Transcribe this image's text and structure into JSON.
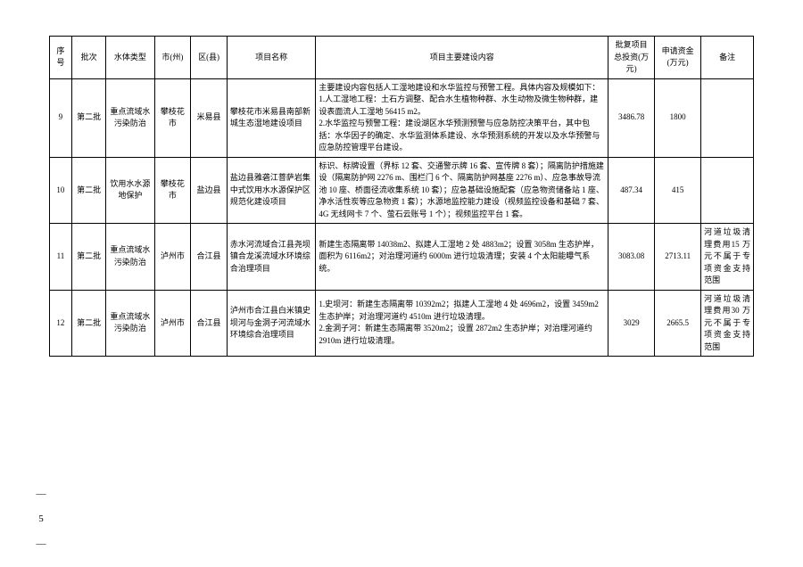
{
  "headers": {
    "seq": "序号",
    "batch": "批次",
    "waterType": "水体类型",
    "city": "市(州)",
    "county": "区(县)",
    "projectName": "项目名称",
    "content": "项目主要建设内容",
    "investment": "批复项目总投资(万元)",
    "fund": "申请资金(万元)",
    "remark": "备注"
  },
  "rows": [
    {
      "seq": "9",
      "batch": "第二批",
      "waterType": "重点流域水污染防治",
      "city": "攀枝花市",
      "county": "米易县",
      "projectName": "攀枝花市米易县南部新城生态湿地建设项目",
      "content": "主要建设内容包括人工湿地建设和水华监控与预警工程。具体内容及规模如下：\n1.人工湿地工程：土石方调整、配合水生植物种群、水生动物及微生物种群，建设表面流人工湿地 56415 m2。\n2.水华监控与预警工程：建设湖区水华预测预警与应急防控决策平台，其中包括：水华因子的确定、水华监测体系建设、水华预测系统的开发以及水华预警与应急防控管理平台建设。",
      "investment": "3486.78",
      "fund": "1800",
      "remark": ""
    },
    {
      "seq": "10",
      "batch": "第二批",
      "waterType": "饮用水水源地保护",
      "city": "攀枝花市",
      "county": "盐边县",
      "projectName": "盐边县雅砻江菩萨岩集中式饮用水水源保护区规范化建设项目",
      "content": "标识、标牌设置（界标 12 套、交通警示牌 16 套、宣传牌 8 套）；隔离防护措施建设（隔离防护网 2276 m、围栏门 6 个、隔离防护网基座 2276 m）、应急事故导流池 10 座、桥面径流收集系统 10 套）；应急基础设施配套（应急物资储备站 1 座、净水活性炭等应急物资 1 套）；水源地监控能力建设（视频监控设备和基础 7 套、4G 无线网卡 7 个、萤石云账号 1 个）；视频监控平台 1 套。",
      "investment": "487.34",
      "fund": "415",
      "remark": ""
    },
    {
      "seq": "11",
      "batch": "第二批",
      "waterType": "重点流域水污染防治",
      "city": "泸州市",
      "county": "合江县",
      "projectName": "赤水河流域合江县尧坝镇合龙溪流域水环境综合治理项目",
      "content": "新建生态隔离带 14038m2、拟建人工湿地 2 处 4883m2；设置 3058m 生态护岸，面积为 6116m2；对治理河道约 6000m 进行垃圾清理；安装 4 个太阳能曝气系统。",
      "investment": "3083.08",
      "fund": "2713.11",
      "remark": "河道垃圾清理费用15 万元不属于专项资金支持范围"
    },
    {
      "seq": "12",
      "batch": "第二批",
      "waterType": "重点流域水污染防治",
      "city": "泸州市",
      "county": "合江县",
      "projectName": "泸州市合江县白米镇史坝河与金洞子河流域水环境综合治理项目",
      "content": "1.史坝河：新建生态隔离带 10392m2；拟建人工湿地 4 处 4696m2，设置 3459m2 生态护岸；对治理河道约 4510m 进行垃圾清理。\n2.金洞子河：新建生态隔离带 3520m2；设置 2872m2 生态护岸；对治理河道约 2910m 进行垃圾清理。",
      "investment": "3029",
      "fund": "2665.5",
      "remark": "河道垃圾清理费用30 万元不属于专项资金支持范围"
    }
  ],
  "pageNumber": "— 5 —"
}
